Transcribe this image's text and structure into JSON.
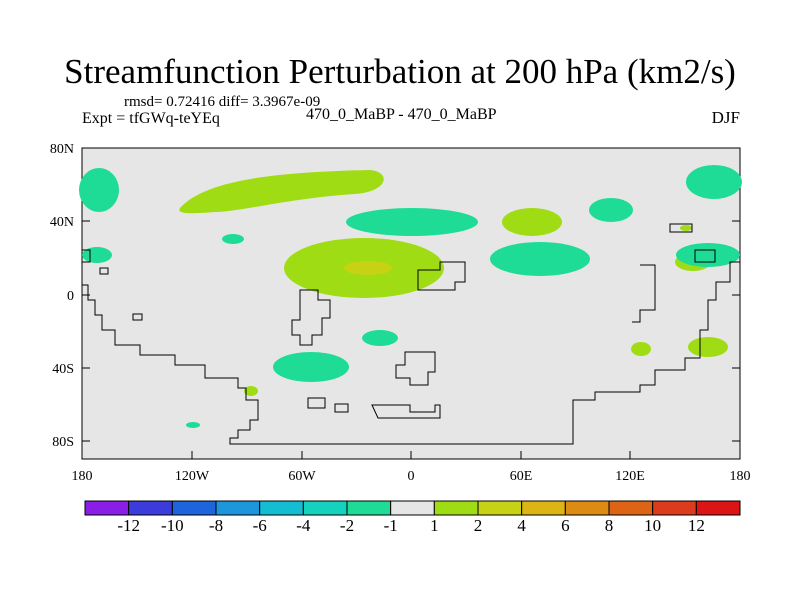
{
  "title": "Streamfunction Perturbation at 200 hPa (km2/s)",
  "stats": "rmsd= 0.72416 diff= 3.3967e-09",
  "experiment": "Expt = tfGWq-teYEq",
  "comparison": "470_0_MaBP - 470_0_MaBP",
  "season": "DJF",
  "map": {
    "lat_ticks": [
      "80N",
      "40N",
      "0",
      "40S",
      "80S"
    ],
    "lon_ticks": [
      "180",
      "120W",
      "60W",
      "0",
      "60E",
      "120E",
      "180"
    ],
    "background_color": "#e6e6e6"
  },
  "colorbar": {
    "labels": [
      "-12",
      "-10",
      "-8",
      "-6",
      "-4",
      "-2",
      "-1",
      "1",
      "2",
      "4",
      "6",
      "8",
      "10",
      "12"
    ],
    "colors": [
      "#8a1ee6",
      "#3c3cdc",
      "#1e64dc",
      "#1e96dc",
      "#14bed2",
      "#14d2be",
      "#1edc96",
      "#e6e6e6",
      "#a0dc14",
      "#c8d214",
      "#dcb414",
      "#dc8c14",
      "#dc6414",
      "#dc3c1e",
      "#dc1414"
    ]
  }
}
